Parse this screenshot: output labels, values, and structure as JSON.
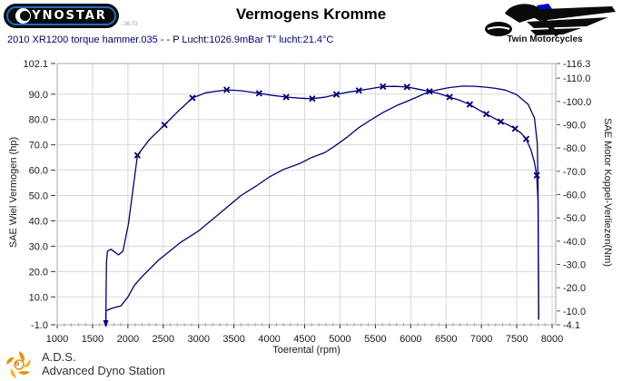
{
  "header": {
    "brand": {
      "name": "DYNOSTAR",
      "wordmark_rest": "YNOSTAR",
      "version_note": "..36.73"
    },
    "title": "Vermogens Kromme",
    "subtitle": "2010 XR1200 torque hammer.035 -  - P Lucht:1026.9mBar T° lucht:21.4°C",
    "right_logo": {
      "label": "Twin Motorcycles"
    }
  },
  "footer": {
    "abbr": "A.D.S.",
    "name": "Advanced Dyno Station"
  },
  "colors": {
    "curve": "#00007d",
    "subtitle_text": "#000080",
    "grid": "#d9d9d9",
    "plot_border": "#a9a9a9",
    "tick": "#333333",
    "minor_tick": "#aaaaaa",
    "brand_blue": "#1b6fc2",
    "twin_blue": "#0000cc",
    "ads_orange": "#e8920a"
  },
  "chart_data": {
    "type": "line",
    "title": "Vermogens Kromme",
    "xlabel": "Toerental (rpm)",
    "ylabel_left": "SAE Wiel Vermogen (hp)",
    "ylabel_right": "SAE Motor Koppel-Verliezen(Nm)",
    "x_range": [
      1000,
      8051
    ],
    "left_range": [
      -1.0,
      102.1
    ],
    "right_range": [
      -4.1,
      -116.3
    ],
    "grid": true,
    "x_minor_step": 100,
    "x_ticks": [
      {
        "v": 1000,
        "label": "1000"
      },
      {
        "v": 1500,
        "label": "1500"
      },
      {
        "v": 2000,
        "label": "2000"
      },
      {
        "v": 2500,
        "label": "2500"
      },
      {
        "v": 3000,
        "label": "3000"
      },
      {
        "v": 3500,
        "label": "3500"
      },
      {
        "v": 4000,
        "label": "4000"
      },
      {
        "v": 4500,
        "label": "4500"
      },
      {
        "v": 5000,
        "label": "5000"
      },
      {
        "v": 5500,
        "label": "5500"
      },
      {
        "v": 6000,
        "label": "6000"
      },
      {
        "v": 6500,
        "label": "6500"
      },
      {
        "v": 7000,
        "label": "7000"
      },
      {
        "v": 7500,
        "label": "7500"
      },
      {
        "v": 8000,
        "label": "8000"
      }
    ],
    "left_ticks": [
      {
        "v": 102.1,
        "label": "102.1"
      },
      {
        "v": 90,
        "label": "90.0"
      },
      {
        "v": 80,
        "label": "80.0"
      },
      {
        "v": 70,
        "label": "70.0"
      },
      {
        "v": 60,
        "label": "60.0"
      },
      {
        "v": 50,
        "label": "50.0"
      },
      {
        "v": 40,
        "label": "40.0"
      },
      {
        "v": 30,
        "label": "30.0"
      },
      {
        "v": 20,
        "label": "20.0"
      },
      {
        "v": 10,
        "label": "10.0"
      },
      {
        "v": -1.0,
        "label": "-1.0"
      }
    ],
    "right_ticks": [
      {
        "v": -116.3,
        "label": "-116.3"
      },
      {
        "v": -110,
        "label": "-110.0"
      },
      {
        "v": -100,
        "label": "-100.0"
      },
      {
        "v": -90,
        "label": "-90.0"
      },
      {
        "v": -80,
        "label": "-80.0"
      },
      {
        "v": -70,
        "label": "-70.0"
      },
      {
        "v": -60,
        "label": "-60.0"
      },
      {
        "v": -50,
        "label": "-50.0"
      },
      {
        "v": -40,
        "label": "-40.0"
      },
      {
        "v": -30,
        "label": "-30.0"
      },
      {
        "v": -20,
        "label": "-20.0"
      },
      {
        "v": -10,
        "label": "-10.0"
      },
      {
        "v": -4.1,
        "label": "-4.1"
      }
    ],
    "series": [
      {
        "name": "SAE Wiel Vermogen (hp)",
        "axis": "left",
        "marker": "none",
        "points": [
          [
            1690,
            4.5
          ],
          [
            1780,
            5.6
          ],
          [
            1900,
            6.4
          ],
          [
            2000,
            10.0
          ],
          [
            2090,
            14.5
          ],
          [
            2200,
            18.0
          ],
          [
            2430,
            24.4
          ],
          [
            2750,
            31.6
          ],
          [
            3000,
            36.0
          ],
          [
            3300,
            43.0
          ],
          [
            3600,
            50.0
          ],
          [
            3817,
            53.8
          ],
          [
            4000,
            57.3
          ],
          [
            4200,
            60.3
          ],
          [
            4436,
            62.7
          ],
          [
            4600,
            65.0
          ],
          [
            4790,
            67.0
          ],
          [
            4930,
            69.6
          ],
          [
            5100,
            73.0
          ],
          [
            5270,
            76.9
          ],
          [
            5440,
            79.9
          ],
          [
            5610,
            82.8
          ],
          [
            5800,
            85.5
          ],
          [
            5950,
            87.2
          ],
          [
            6100,
            89.0
          ],
          [
            6250,
            90.9
          ],
          [
            6400,
            91.8
          ],
          [
            6550,
            92.6
          ],
          [
            6740,
            93.2
          ],
          [
            6900,
            93.1
          ],
          [
            7050,
            92.8
          ],
          [
            7200,
            92.3
          ],
          [
            7340,
            91.6
          ],
          [
            7500,
            89.8
          ],
          [
            7660,
            86.0
          ],
          [
            7750,
            80.6
          ],
          [
            7790,
            70.6
          ],
          [
            7800,
            55.0
          ],
          [
            7806,
            25.0
          ],
          [
            7810,
            1.0
          ]
        ]
      },
      {
        "name": "SAE Motor Koppel-Verliezen (Nm)",
        "axis": "right",
        "marker": "x",
        "points": [
          [
            1688,
            -5.2
          ],
          [
            1692,
            -20.0
          ],
          [
            1698,
            -31.0
          ],
          [
            1710,
            -35.7
          ],
          [
            1760,
            -36.5
          ],
          [
            1820,
            -35.2
          ],
          [
            1867,
            -34.1
          ],
          [
            1930,
            -35.7
          ],
          [
            2007,
            -47.3
          ],
          [
            2070,
            -61.8
          ],
          [
            2135,
            -76.9
          ],
          [
            2300,
            -83.5
          ],
          [
            2517,
            -89.9
          ],
          [
            2700,
            -95.5
          ],
          [
            2913,
            -101.5
          ],
          [
            3100,
            -103.7
          ],
          [
            3397,
            -105.0
          ],
          [
            3600,
            -104.6
          ],
          [
            3856,
            -103.5
          ],
          [
            4050,
            -102.6
          ],
          [
            4239,
            -101.9
          ],
          [
            4420,
            -101.4
          ],
          [
            4608,
            -101.2
          ],
          [
            4780,
            -101.8
          ],
          [
            4949,
            -103.0
          ],
          [
            5100,
            -103.9
          ],
          [
            5267,
            -104.7
          ],
          [
            5450,
            -105.6
          ],
          [
            5607,
            -106.4
          ],
          [
            5780,
            -106.5
          ],
          [
            5947,
            -106.2
          ],
          [
            6100,
            -105.3
          ],
          [
            6266,
            -104.3
          ],
          [
            6400,
            -103.4
          ],
          [
            6550,
            -101.9
          ],
          [
            6700,
            -100.4
          ],
          [
            6836,
            -98.7
          ],
          [
            6950,
            -96.6
          ],
          [
            7069,
            -94.6
          ],
          [
            7170,
            -93.0
          ],
          [
            7273,
            -91.3
          ],
          [
            7380,
            -89.9
          ],
          [
            7477,
            -88.3
          ],
          [
            7560,
            -86.4
          ],
          [
            7634,
            -83.9
          ],
          [
            7700,
            -79.2
          ],
          [
            7750,
            -73.7
          ],
          [
            7783,
            -68.3
          ],
          [
            7800,
            -57.4
          ],
          [
            7806,
            -37.8
          ],
          [
            7810,
            -10.6
          ],
          [
            7812,
            -6.3
          ]
        ],
        "marker_points": [
          [
            2135,
            -76.9
          ],
          [
            2517,
            -89.9
          ],
          [
            2913,
            -101.5
          ],
          [
            3397,
            -105.0
          ],
          [
            3856,
            -103.5
          ],
          [
            4239,
            -101.9
          ],
          [
            4608,
            -101.2
          ],
          [
            4949,
            -103.0
          ],
          [
            5267,
            -104.7
          ],
          [
            5607,
            -106.4
          ],
          [
            5947,
            -106.2
          ],
          [
            6266,
            -104.3
          ],
          [
            6550,
            -101.9
          ],
          [
            6836,
            -98.7
          ],
          [
            7069,
            -94.6
          ],
          [
            7273,
            -91.3
          ],
          [
            7477,
            -88.3
          ],
          [
            7634,
            -83.9
          ],
          [
            7783,
            -68.3
          ]
        ]
      }
    ],
    "annotations": [
      {
        "type": "down-arrow",
        "x": 1688
      }
    ]
  }
}
